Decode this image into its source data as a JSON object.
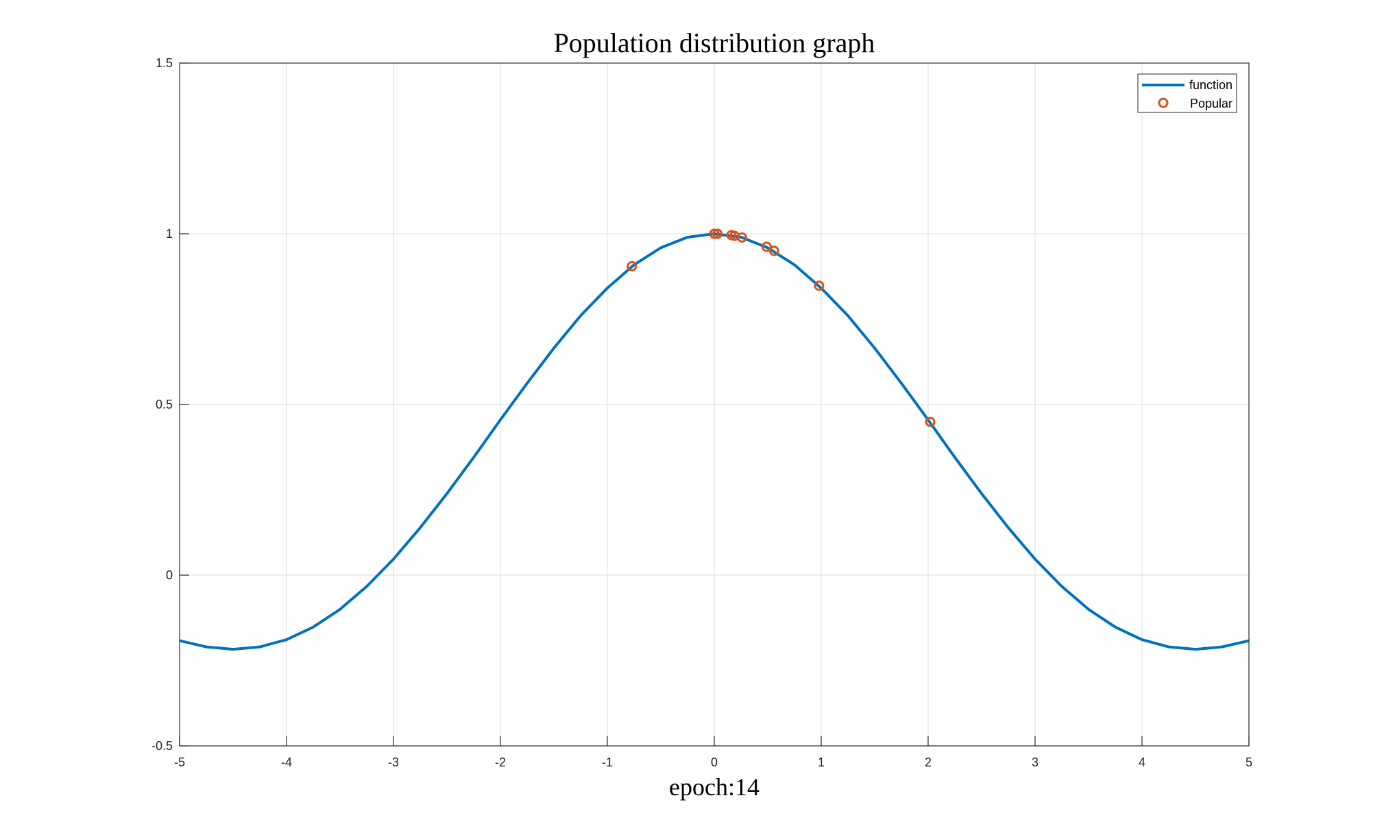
{
  "chart_data": {
    "type": "line",
    "title": "Population distribution graph",
    "xlabel": "epoch:14",
    "ylabel": "",
    "xlim": [
      -5,
      5
    ],
    "ylim": [
      -0.5,
      1.5
    ],
    "x_ticks": [
      -5,
      -4,
      -3,
      -2,
      -1,
      0,
      1,
      2,
      3,
      4,
      5
    ],
    "y_ticks": [
      -0.5,
      0,
      0.5,
      1,
      1.5
    ],
    "x_tick_labels": [
      "-5",
      "-4",
      "-3",
      "-2",
      "-1",
      "0",
      "1",
      "2",
      "3",
      "4",
      "5"
    ],
    "y_tick_labels": [
      "-0.5",
      "0",
      "0.5",
      "1",
      "1.5"
    ],
    "grid": true,
    "legend_position": "top-right",
    "series": [
      {
        "name": "function",
        "style": "line",
        "color": "#0072BD",
        "function_samples": {
          "x": [
            -5,
            -4.75,
            -4.5,
            -4.25,
            -4,
            -3.75,
            -3.5,
            -3.25,
            -3,
            -2.75,
            -2.5,
            -2.25,
            -2,
            -1.75,
            -1.5,
            -1.25,
            -1,
            -0.75,
            -0.5,
            -0.25,
            0,
            0.25,
            0.5,
            0.75,
            1,
            1.25,
            1.5,
            1.75,
            2,
            2.25,
            2.5,
            2.75,
            3,
            3.25,
            3.5,
            3.75,
            4,
            4.25,
            4.5,
            4.75,
            5
          ],
          "y": [
            -0.192,
            -0.21,
            -0.217,
            -0.21,
            -0.189,
            -0.152,
            -0.1,
            -0.033,
            0.047,
            0.139,
            0.239,
            0.345,
            0.455,
            0.562,
            0.665,
            0.76,
            0.841,
            0.909,
            0.959,
            0.99,
            1.0,
            0.99,
            0.959,
            0.909,
            0.841,
            0.76,
            0.665,
            0.562,
            0.455,
            0.345,
            0.239,
            0.139,
            0.047,
            -0.033,
            -0.1,
            -0.152,
            -0.189,
            -0.21,
            -0.217,
            -0.21,
            -0.192
          ]
        }
      },
      {
        "name": "Popular",
        "style": "scatter",
        "color": "#D95319",
        "x": [
          -0.77,
          0.0,
          0.03,
          0.16,
          0.19,
          0.26,
          0.49,
          0.56,
          0.98,
          2.02
        ],
        "y": [
          0.905,
          1.0,
          1.0,
          0.996,
          0.994,
          0.989,
          0.962,
          0.95,
          0.848,
          0.449
        ]
      }
    ]
  }
}
